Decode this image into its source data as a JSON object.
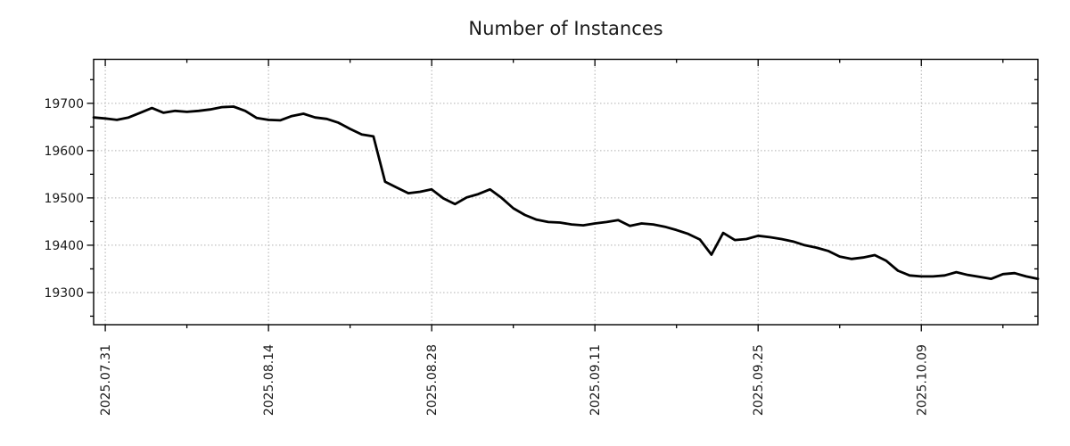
{
  "chart_data": {
    "type": "line",
    "title": "Number of Instances",
    "legend_position": "none",
    "grid": {
      "show": true,
      "style": "dotted",
      "axis": "both"
    },
    "colors": {
      "line": "#000000",
      "grid": "#b0b0b0",
      "border": "#000000",
      "tick": "#000000",
      "text": "#1a1a1a",
      "background": "#ffffff"
    },
    "line_width": 2.8,
    "ylim": [
      19232,
      19793
    ],
    "y_ticks": [
      19700,
      19600,
      19500,
      19400,
      19300
    ],
    "y_minor_ticks": [
      19750,
      19650,
      19550,
      19450,
      19350,
      19250
    ],
    "x_tick_labels": [
      "2025.07.31",
      "2025.08.14",
      "2025.08.28",
      "2025.09.11",
      "2025.09.25",
      "2025.10.09"
    ],
    "x_tick_indices": [
      1,
      15,
      29,
      43,
      57,
      71
    ],
    "x_minor_tick_indices": [
      8,
      22,
      36,
      50,
      64,
      78
    ],
    "x": [
      "2025.07.30",
      "2025.07.31",
      "2025.08.01",
      "2025.08.02",
      "2025.08.03",
      "2025.08.04",
      "2025.08.05",
      "2025.08.06",
      "2025.08.07",
      "2025.08.08",
      "2025.08.09",
      "2025.08.10",
      "2025.08.11",
      "2025.08.12",
      "2025.08.13",
      "2025.08.14",
      "2025.08.15",
      "2025.08.16",
      "2025.08.17",
      "2025.08.18",
      "2025.08.19",
      "2025.08.20",
      "2025.08.21",
      "2025.08.22",
      "2025.08.23",
      "2025.08.24",
      "2025.08.25",
      "2025.08.26",
      "2025.08.27",
      "2025.08.28",
      "2025.08.29",
      "2025.08.30",
      "2025.08.31",
      "2025.09.01",
      "2025.09.02",
      "2025.09.03",
      "2025.09.04",
      "2025.09.05",
      "2025.09.06",
      "2025.09.07",
      "2025.09.08",
      "2025.09.09",
      "2025.09.10",
      "2025.09.11",
      "2025.09.12",
      "2025.09.13",
      "2025.09.14",
      "2025.09.15",
      "2025.09.16",
      "2025.09.17",
      "2025.09.18",
      "2025.09.19",
      "2025.09.20",
      "2025.09.21",
      "2025.09.22",
      "2025.09.23",
      "2025.09.24",
      "2025.09.25",
      "2025.09.26",
      "2025.09.27",
      "2025.09.28",
      "2025.09.29",
      "2025.09.30",
      "2025.10.01",
      "2025.10.02",
      "2025.10.03",
      "2025.10.04",
      "2025.10.05",
      "2025.10.06",
      "2025.10.07",
      "2025.10.08",
      "2025.10.09",
      "2025.10.10",
      "2025.10.11",
      "2025.10.12",
      "2025.10.13",
      "2025.10.14",
      "2025.10.15",
      "2025.10.16",
      "2025.10.17",
      "2025.10.18",
      "2025.10.19"
    ],
    "values": [
      19670,
      19668,
      19665,
      19670,
      19680,
      19690,
      19680,
      19684,
      19682,
      19684,
      19687,
      19692,
      19693,
      19684,
      19669,
      19665,
      19664,
      19673,
      19678,
      19670,
      19667,
      19659,
      19646,
      19634,
      19630,
      19534,
      19522,
      19510,
      19513,
      19518,
      19499,
      19487,
      19501,
      19508,
      19518,
      19500,
      19478,
      19464,
      19454,
      19449,
      19448,
      19444,
      19442,
      19446,
      19449,
      19453,
      19441,
      19446,
      19444,
      19439,
      19432,
      19424,
      19412,
      19380,
      19426,
      19411,
      19413,
      19420,
      19417,
      19413,
      19408,
      19400,
      19395,
      19388,
      19376,
      19371,
      19374,
      19379,
      19367,
      19346,
      19336,
      19334,
      19334,
      19336,
      19343,
      19337,
      19333,
      19329,
      19339,
      19341,
      19334,
      19329
    ]
  }
}
